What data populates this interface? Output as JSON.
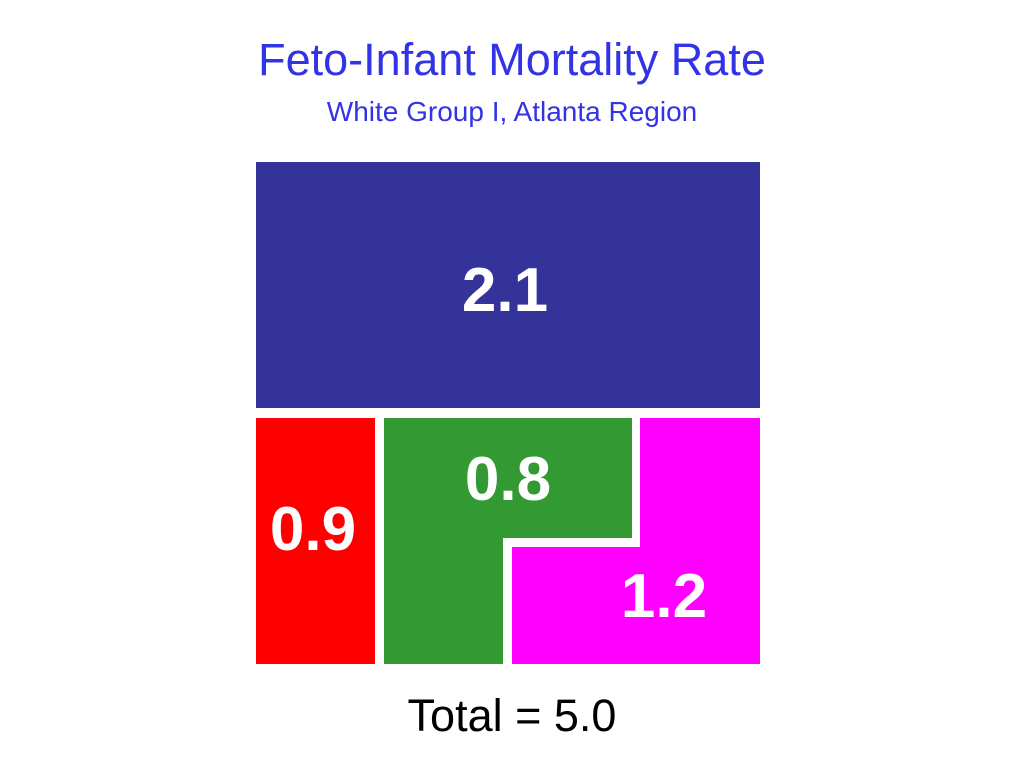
{
  "header": {
    "title": "Feto-Infant Mortality Rate",
    "subtitle": "White Group I, Atlanta Region"
  },
  "segments": [
    {
      "id": "blue",
      "value": "2.1",
      "color": "#333399"
    },
    {
      "id": "red",
      "value": "0.9",
      "color": "#ff0000"
    },
    {
      "id": "green",
      "value": "0.8",
      "color": "#339933"
    },
    {
      "id": "magenta",
      "value": "1.2",
      "color": "#ff00ff"
    }
  ],
  "footer": {
    "total_label": "Total = 5.0"
  }
}
